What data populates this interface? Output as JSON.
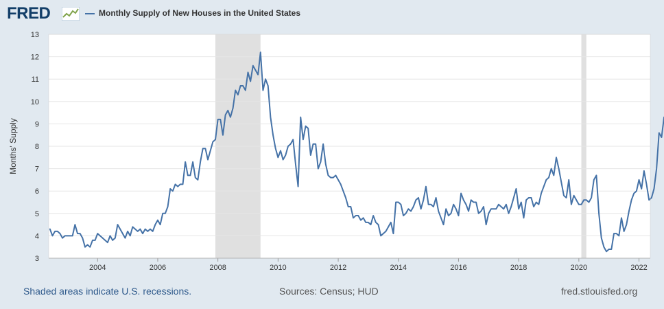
{
  "header": {
    "logo_text": "FRED",
    "legend_label": "Monthly Supply of New Houses in the United States"
  },
  "colors": {
    "line": "#4572a7",
    "recession": "#e0e0e0",
    "plot_bg": "#ffffff",
    "page_bg": "#e1e9f0",
    "grid": "#e6e6e6"
  },
  "footer": {
    "note": "Shaded areas indicate U.S. recessions.",
    "sources": "Sources: Census; HUD",
    "site": "fred.stlouisfed.org"
  },
  "chart_data": {
    "type": "line",
    "title": "Monthly Supply of New Houses in the United States",
    "xlabel": "",
    "ylabel": "Months' Supply",
    "xlim": [
      2002.375,
      2022.375
    ],
    "ylim": [
      3,
      13
    ],
    "yticks": [
      3,
      4,
      5,
      6,
      7,
      8,
      9,
      10,
      11,
      12,
      13
    ],
    "xticks": [
      2004,
      2006,
      2008,
      2010,
      2012,
      2014,
      2016,
      2018,
      2020,
      2022
    ],
    "grid": "horizontal",
    "legend": "top-left",
    "recessions": [
      {
        "start": 2007.917,
        "end": 2009.417,
        "label": "2007-12 to 2009-06"
      },
      {
        "start": 2020.083,
        "end": 2020.25,
        "label": "2020-02 to 2020-04"
      }
    ],
    "series": [
      {
        "name": "Monthly Supply of New Houses in the United States",
        "start": "2002-06",
        "frequency": "monthly",
        "values": [
          4.3,
          4.0,
          4.2,
          4.2,
          4.1,
          3.9,
          4.0,
          4.0,
          4.0,
          4.0,
          4.5,
          4.1,
          4.1,
          3.9,
          3.5,
          3.6,
          3.5,
          3.8,
          3.8,
          4.1,
          4.0,
          3.9,
          3.8,
          3.7,
          4.0,
          3.8,
          3.9,
          4.5,
          4.3,
          4.1,
          3.9,
          4.2,
          4.0,
          4.4,
          4.3,
          4.2,
          4.3,
          4.1,
          4.3,
          4.2,
          4.3,
          4.2,
          4.5,
          4.7,
          4.5,
          5.0,
          5.0,
          5.3,
          6.1,
          6.0,
          6.3,
          6.2,
          6.3,
          6.3,
          7.3,
          6.7,
          6.7,
          7.3,
          6.6,
          6.5,
          7.3,
          7.9,
          7.9,
          7.4,
          7.8,
          8.2,
          8.3,
          9.2,
          9.2,
          8.5,
          9.4,
          9.6,
          9.3,
          9.7,
          10.5,
          10.3,
          10.7,
          10.7,
          10.5,
          11.3,
          10.9,
          11.6,
          11.4,
          11.2,
          12.2,
          10.5,
          11.0,
          10.7,
          9.3,
          8.5,
          7.9,
          7.5,
          7.8,
          7.4,
          7.6,
          8.0,
          8.1,
          8.3,
          7.2,
          6.2,
          9.3,
          8.3,
          8.9,
          8.8,
          7.6,
          8.1,
          8.1,
          7.0,
          7.3,
          8.1,
          7.2,
          6.7,
          6.6,
          6.6,
          6.7,
          6.5,
          6.3,
          6.0,
          5.7,
          5.3,
          5.3,
          4.8,
          4.9,
          4.9,
          4.7,
          4.8,
          4.6,
          4.6,
          4.5,
          4.9,
          4.6,
          4.5,
          4.0,
          4.1,
          4.2,
          4.4,
          4.6,
          4.1,
          5.5,
          5.5,
          5.4,
          4.9,
          5.0,
          5.2,
          5.1,
          5.3,
          5.6,
          5.7,
          5.2,
          5.6,
          6.2,
          5.4,
          5.4,
          5.3,
          5.7,
          5.1,
          4.8,
          4.5,
          5.2,
          4.9,
          5.0,
          5.4,
          5.2,
          4.9,
          5.9,
          5.6,
          5.4,
          5.1,
          5.6,
          5.5,
          5.5,
          5.0,
          5.1,
          5.3,
          4.5,
          5.0,
          5.2,
          5.2,
          5.2,
          5.4,
          5.3,
          5.2,
          5.4,
          5.0,
          5.3,
          5.7,
          6.1,
          5.2,
          5.5,
          4.8,
          5.6,
          5.7,
          5.7,
          5.3,
          5.5,
          5.4,
          5.9,
          6.2,
          6.5,
          6.6,
          7.0,
          6.7,
          7.5,
          7.0,
          6.4,
          5.8,
          5.7,
          6.5,
          5.4,
          5.8,
          5.6,
          5.4,
          5.4,
          5.6,
          5.6,
          5.5,
          5.7,
          6.5,
          6.7,
          5.0,
          3.9,
          3.5,
          3.3,
          3.4,
          3.4,
          4.1,
          4.1,
          4.0,
          4.8,
          4.2,
          4.5,
          5.1,
          5.6,
          5.9,
          6.0,
          6.5,
          6.1,
          6.9,
          6.3,
          5.6,
          5.7,
          6.1,
          7.0,
          8.6,
          8.4,
          9.3
        ]
      }
    ]
  }
}
